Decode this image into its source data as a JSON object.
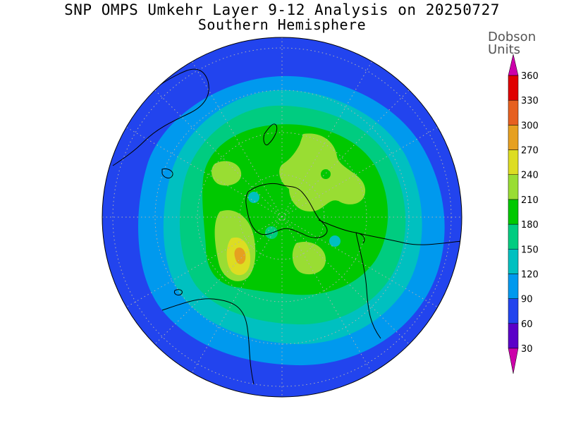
{
  "title": {
    "line1": "SNP OMPS Umkehr Layer 9-12 Analysis on 20250727",
    "line2": "Southern Hemisphere"
  },
  "legend": {
    "title_line1": "Dobson",
    "title_line2": "Units",
    "ticks": [
      "30",
      "60",
      "90",
      "120",
      "150",
      "180",
      "210",
      "240",
      "270",
      "300",
      "330",
      "360"
    ],
    "colors": [
      "#8a2be2",
      "#5a00c8",
      "#2244ee",
      "#0099ee",
      "#00c0c0",
      "#00cc80",
      "#00c800",
      "#99dd33",
      "#dddd22",
      "#e6a020",
      "#e66020",
      "#e00000"
    ],
    "over_color": "#cc00aa",
    "under_color": "#cc00aa"
  },
  "map": {
    "projection": "polar stereographic, south pole centered",
    "contour_levels_du": [
      60,
      90,
      120,
      150,
      180,
      210,
      240,
      270
    ],
    "background_color": "#2244ee",
    "grid": "dotted lat/lon"
  }
}
